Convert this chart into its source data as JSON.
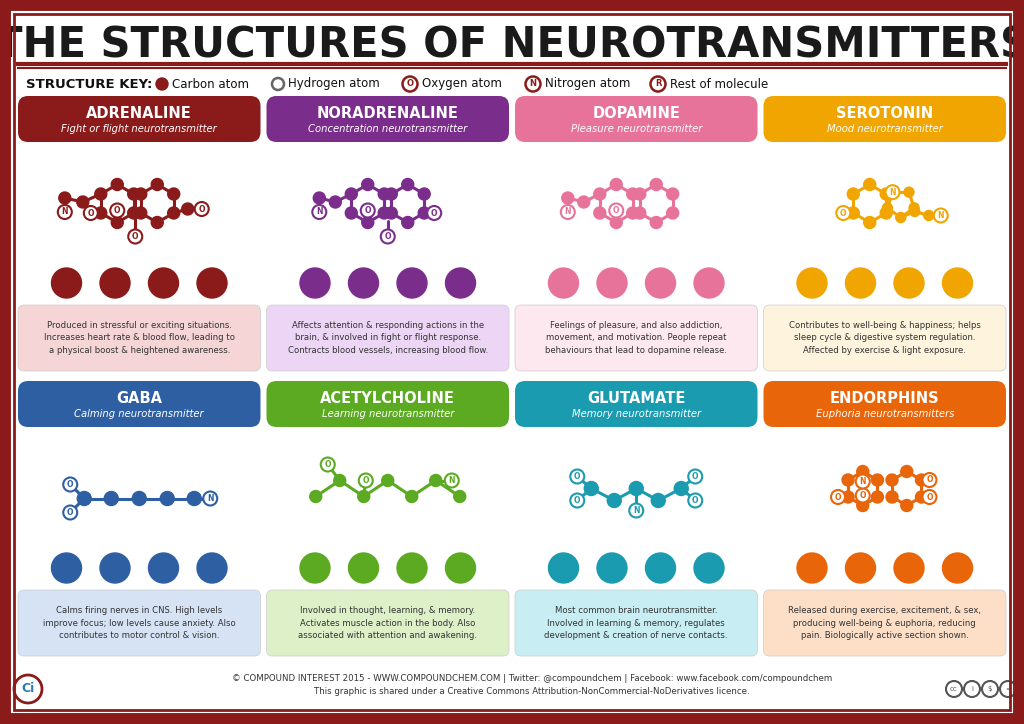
{
  "title": "THE STRUCTURES OF NEUROTRANSMITTERS",
  "bg": "#FFFFFF",
  "border": "#8B1A1A",
  "row1": [
    {
      "name": "ADRENALINE",
      "sub": "Fight or flight neurotransmitter",
      "hdr": "#8B1A1A",
      "mol": "#8B1A1A",
      "desc_bg": "#F5D5D5",
      "desc": "Produced in stressful or exciting situations.\nIncreases heart rate & blood flow, leading to\na physical boost & heightened awareness."
    },
    {
      "name": "NORADRENALINE",
      "sub": "Concentration neurotransmitter",
      "hdr": "#7B2D8B",
      "mol": "#7B2D8B",
      "desc_bg": "#EDD5F5",
      "desc": "Affects attention & responding actions in the\nbrain, & involved in fight or flight response.\nContracts blood vessels, increasing blood flow."
    },
    {
      "name": "DOPAMINE",
      "sub": "Pleasure neurotransmitter",
      "hdr": "#E8739A",
      "mol": "#E8739A",
      "desc_bg": "#FDE8EF",
      "desc": "Feelings of pleasure, and also addiction,\nmovement, and motivation. People repeat\nbehaviours that lead to dopamine release."
    },
    {
      "name": "SEROTONIN",
      "sub": "Mood neurotransmitter",
      "hdr": "#F0A500",
      "mol": "#F0A500",
      "desc_bg": "#FEF3DC",
      "desc": "Contributes to well-being & happiness; helps\nsleep cycle & digestive system regulation.\nAffected by exercise & light exposure."
    }
  ],
  "row2": [
    {
      "name": "GABA",
      "sub": "Calming neurotransmitter",
      "hdr": "#2E5FA3",
      "mol": "#2E5FA3",
      "desc_bg": "#D5E3F5",
      "desc": "Calms firing nerves in CNS. High levels\nimprove focus; low levels cause anxiety. Also\ncontributes to motor control & vision."
    },
    {
      "name": "ACETYLCHOLINE",
      "sub": "Learning neurotransmitter",
      "hdr": "#5BAA22",
      "mol": "#5BAA22",
      "desc_bg": "#DDF0C8",
      "desc": "Involved in thought, learning, & memory.\nActivates muscle action in the body. Also\nassociated with attention and awakening."
    },
    {
      "name": "GLUTAMATE",
      "sub": "Memory neurotransmitter",
      "hdr": "#1A9BAF",
      "mol": "#1A9BAF",
      "desc_bg": "#C8EEF3",
      "desc": "Most common brain neurotransmitter.\nInvolved in learning & memory, regulates\ndevelopment & creation of nerve contacts."
    },
    {
      "name": "ENDORPHINS",
      "sub": "Euphoria neurotransmitters",
      "hdr": "#E8650A",
      "mol": "#E8650A",
      "desc_bg": "#FDDFC8",
      "desc": "Released during exercise, excitement, & sex,\nproducing well-being & euphoria, reducing\npain. Biologically active section shown."
    }
  ],
  "footer": "© COMPOUND INTEREST 2015 - WWW.COMPOUNDCHEM.COM | Twitter: @compoundchem | Facebook: www.facebook.com/compoundchem\nThis graphic is shared under a Creative Commons Attribution-NonCommercial-NoDerivatives licence."
}
